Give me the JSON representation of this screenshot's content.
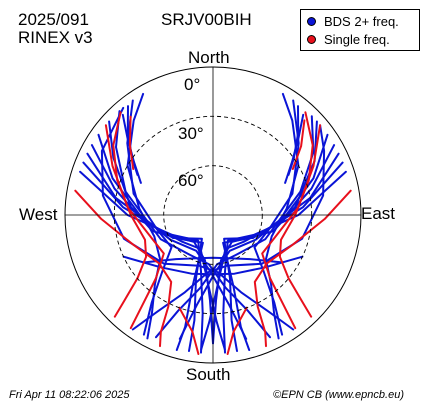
{
  "header": {
    "date_code": "2025/091",
    "rinex": "RINEX v3",
    "station": "SRJV00BIH"
  },
  "legend": {
    "items": [
      {
        "label": "BDS 2+ freq.",
        "color": "#0a14d6"
      },
      {
        "label": "Single freq.",
        "color": "#e8101c"
      }
    ]
  },
  "directions": {
    "north": "North",
    "south": "South",
    "east": "East",
    "west": "West"
  },
  "elevation_labels": [
    "0°",
    "30°",
    "60°"
  ],
  "footer": {
    "timestamp": "Fri Apr 11 08:22:06 2025",
    "credit": "©EPN CB (www.epncb.eu)"
  },
  "chart_data": {
    "type": "scatter",
    "projection": "polar-skyplot",
    "elevation_rings_deg": [
      0,
      30,
      60
    ],
    "series": [
      {
        "name": "BDS 2+ freq.",
        "color": "#0a14d6",
        "tracks": [
          [
            [
              320,
              5
            ],
            [
              300,
              12
            ],
            [
              280,
              22
            ],
            [
              255,
              34
            ],
            [
              225,
              48
            ],
            [
              195,
              58
            ],
            [
              175,
              55
            ],
            [
              160,
              40
            ],
            [
              150,
              22
            ],
            [
              145,
              5
            ]
          ],
          [
            [
              318,
              5
            ],
            [
              305,
              18
            ],
            [
              285,
              35
            ],
            [
              245,
              55
            ],
            [
              210,
              62
            ],
            [
              185,
              60
            ],
            [
              170,
              45
            ],
            [
              160,
              28
            ],
            [
              155,
              8
            ]
          ],
          [
            [
              312,
              5
            ],
            [
              300,
              20
            ],
            [
              275,
              40
            ],
            [
              240,
              60
            ],
            [
              205,
              66
            ],
            [
              182,
              55
            ],
            [
              170,
              35
            ],
            [
              165,
              12
            ]
          ],
          [
            [
              305,
              5
            ],
            [
              290,
              25
            ],
            [
              265,
              48
            ],
            [
              230,
              65
            ],
            [
              200,
              68
            ],
            [
              185,
              50
            ],
            [
              178,
              25
            ],
            [
              175,
              8
            ]
          ],
          [
            [
              300,
              5
            ],
            [
              285,
              28
            ],
            [
              255,
              52
            ],
            [
              215,
              70
            ],
            [
              190,
              62
            ],
            [
              182,
              38
            ],
            [
              180,
              12
            ]
          ],
          [
            [
              296,
              5
            ],
            [
              280,
              30
            ],
            [
              250,
              58
            ],
            [
              210,
              72
            ],
            [
              192,
              55
            ],
            [
              186,
              30
            ],
            [
              185,
              6
            ]
          ],
          [
            [
              292,
              5
            ],
            [
              275,
              35
            ],
            [
              240,
              62
            ],
            [
              205,
              74
            ],
            [
              195,
              50
            ],
            [
              190,
              25
            ],
            [
              190,
              6
            ]
          ],
          [
            [
              288,
              5
            ],
            [
              270,
              38
            ],
            [
              232,
              66
            ],
            [
              200,
              72
            ],
            [
              196,
              45
            ],
            [
              194,
              20
            ],
            [
              195,
              5
            ]
          ],
          [
            [
              330,
              5
            ],
            [
              320,
              15
            ],
            [
              300,
              30
            ],
            [
              275,
              45
            ],
            [
              250,
              52
            ],
            [
              230,
              48
            ],
            [
              220,
              35
            ],
            [
              212,
              20
            ],
            [
              208,
              5
            ]
          ],
          [
            [
              325,
              5
            ],
            [
              310,
              22
            ],
            [
              285,
              40
            ],
            [
              255,
              55
            ],
            [
              232,
              58
            ],
            [
              222,
              44
            ],
            [
              215,
              25
            ],
            [
              210,
              6
            ]
          ],
          [
            [
              50,
              5
            ],
            [
              60,
              12
            ],
            [
              80,
              22
            ],
            [
              105,
              34
            ],
            [
              135,
              48
            ],
            [
              165,
              58
            ],
            [
              185,
              55
            ],
            [
              200,
              40
            ],
            [
              210,
              22
            ],
            [
              215,
              5
            ]
          ],
          [
            [
              45,
              5
            ],
            [
              58,
              18
            ],
            [
              75,
              35
            ],
            [
              115,
              55
            ],
            [
              150,
              62
            ],
            [
              175,
              60
            ],
            [
              190,
              45
            ],
            [
              200,
              28
            ],
            [
              205,
              8
            ]
          ],
          [
            [
              48,
              5
            ],
            [
              62,
              20
            ],
            [
              85,
              40
            ],
            [
              120,
              60
            ],
            [
              155,
              66
            ],
            [
              178,
              55
            ],
            [
              190,
              35
            ],
            [
              195,
              12
            ]
          ],
          [
            [
              55,
              5
            ],
            [
              70,
              25
            ],
            [
              95,
              48
            ],
            [
              130,
              65
            ],
            [
              160,
              68
            ],
            [
              175,
              50
            ],
            [
              182,
              25
            ],
            [
              185,
              8
            ]
          ],
          [
            [
              60,
              5
            ],
            [
              75,
              28
            ],
            [
              105,
              52
            ],
            [
              145,
              70
            ],
            [
              170,
              62
            ],
            [
              178,
              38
            ],
            [
              180,
              12
            ]
          ],
          [
            [
              64,
              5
            ],
            [
              80,
              30
            ],
            [
              110,
              58
            ],
            [
              150,
              72
            ],
            [
              168,
              55
            ],
            [
              174,
              30
            ],
            [
              175,
              6
            ]
          ],
          [
            [
              68,
              5
            ],
            [
              85,
              35
            ],
            [
              120,
              62
            ],
            [
              155,
              74
            ],
            [
              165,
              50
            ],
            [
              170,
              25
            ],
            [
              170,
              6
            ]
          ],
          [
            [
              72,
              5
            ],
            [
              90,
              38
            ],
            [
              128,
              66
            ],
            [
              160,
              72
            ],
            [
              164,
              45
            ],
            [
              166,
              20
            ],
            [
              165,
              5
            ]
          ],
          [
            [
              30,
              5
            ],
            [
              40,
              15
            ],
            [
              60,
              30
            ],
            [
              85,
              45
            ],
            [
              110,
              52
            ],
            [
              130,
              48
            ],
            [
              140,
              35
            ],
            [
              148,
              20
            ],
            [
              152,
              5
            ]
          ],
          [
            [
              35,
              5
            ],
            [
              50,
              22
            ],
            [
              75,
              40
            ],
            [
              105,
              55
            ],
            [
              128,
              58
            ],
            [
              138,
              44
            ],
            [
              145,
              25
            ],
            [
              150,
              6
            ]
          ],
          [
            [
              42,
              8
            ],
            [
              48,
              20
            ],
            [
              56,
              32
            ],
            [
              66,
              42
            ]
          ],
          [
            [
              38,
              6
            ],
            [
              46,
              18
            ],
            [
              55,
              30
            ],
            [
              62,
              38
            ]
          ],
          [
            [
              318,
              8
            ],
            [
              312,
              20
            ],
            [
              304,
              32
            ],
            [
              294,
              42
            ]
          ],
          [
            [
              322,
              6
            ],
            [
              314,
              18
            ],
            [
              305,
              30
            ],
            [
              298,
              38
            ]
          ],
          [
            [
              235,
              40
            ],
            [
              220,
              55
            ],
            [
              200,
              62
            ],
            [
              180,
              64
            ],
            [
              160,
              62
            ],
            [
              140,
              55
            ],
            [
              125,
              40
            ]
          ],
          [
            [
              245,
              30
            ],
            [
              225,
              45
            ],
            [
              200,
              52
            ],
            [
              180,
              54
            ],
            [
              160,
              52
            ],
            [
              135,
              45
            ],
            [
              115,
              30
            ]
          ]
        ]
      },
      {
        "name": "Single freq.",
        "color": "#e8101c",
        "tracks": [
          [
            [
              318,
              6
            ],
            [
              305,
              16
            ],
            [
              290,
              28
            ],
            [
              270,
              40
            ],
            [
              250,
              46
            ],
            [
              238,
              42
            ],
            [
              230,
              30
            ],
            [
              226,
              15
            ],
            [
              224,
              4
            ]
          ],
          [
            [
              310,
              5
            ],
            [
              296,
              22
            ],
            [
              275,
              38
            ],
            [
              250,
              50
            ],
            [
              232,
              52
            ],
            [
              222,
              38
            ],
            [
              218,
              20
            ],
            [
              216,
              5
            ]
          ],
          [
            [
              280,
              5
            ],
            [
              268,
              22
            ],
            [
              250,
              38
            ],
            [
              228,
              46
            ],
            [
              212,
              42
            ],
            [
              206,
              28
            ],
            [
              204,
              12
            ],
            [
              202,
              4
            ]
          ],
          [
            [
              42,
              6
            ],
            [
              55,
              16
            ],
            [
              70,
              28
            ],
            [
              90,
              40
            ],
            [
              110,
              46
            ],
            [
              122,
              42
            ],
            [
              130,
              30
            ],
            [
              134,
              15
            ],
            [
              136,
              4
            ]
          ],
          [
            [
              50,
              5
            ],
            [
              64,
              22
            ],
            [
              85,
              38
            ],
            [
              110,
              50
            ],
            [
              128,
              52
            ],
            [
              138,
              38
            ],
            [
              142,
              20
            ],
            [
              144,
              5
            ]
          ],
          [
            [
              80,
              5
            ],
            [
              92,
              22
            ],
            [
              110,
              38
            ],
            [
              132,
              46
            ],
            [
              148,
              42
            ],
            [
              154,
              28
            ],
            [
              156,
              12
            ],
            [
              158,
              4
            ]
          ],
          [
            [
              44,
              10
            ],
            [
              52,
              22
            ],
            [
              60,
              34
            ]
          ],
          [
            [
              320,
              12
            ],
            [
              310,
              24
            ],
            [
              300,
              34
            ]
          ],
          [
            [
              200,
              30
            ],
            [
              190,
              18
            ],
            [
              186,
              5
            ]
          ],
          [
            [
              160,
              30
            ],
            [
              170,
              18
            ],
            [
              174,
              5
            ]
          ]
        ]
      }
    ]
  }
}
